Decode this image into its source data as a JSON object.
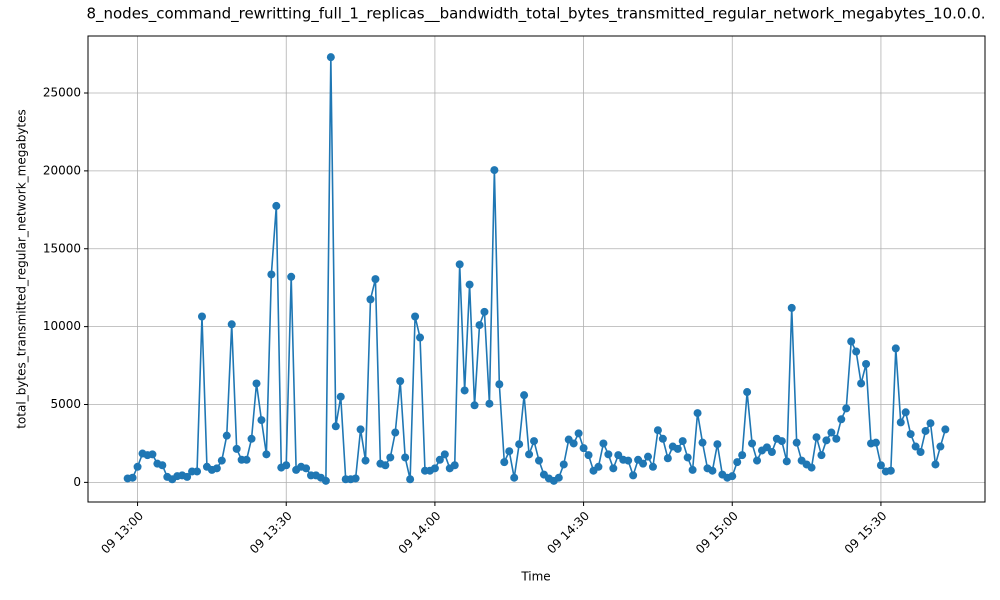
{
  "chart_data": {
    "type": "line",
    "title": "8_nodes_command_rewritting_full_1_replicas__bandwidth_total_bytes_transmitted_regular_network_megabytes_10.0.0.",
    "x_label": "Time",
    "y_label": "total_bytes_transmitted_regular_network_megabytes",
    "x": [
      "09 12:58",
      "09 12:59",
      "09 13:00",
      "09 13:01",
      "09 13:02",
      "09 13:03",
      "09 13:04",
      "09 13:05",
      "09 13:06",
      "09 13:07",
      "09 13:08",
      "09 13:09",
      "09 13:10",
      "09 13:11",
      "09 13:12",
      "09 13:13",
      "09 13:14",
      "09 13:15",
      "09 13:16",
      "09 13:17",
      "09 13:18",
      "09 13:19",
      "09 13:20",
      "09 13:21",
      "09 13:22",
      "09 13:23",
      "09 13:24",
      "09 13:25",
      "09 13:26",
      "09 13:27",
      "09 13:28",
      "09 13:29",
      "09 13:30",
      "09 13:31",
      "09 13:32",
      "09 13:33",
      "09 13:34",
      "09 13:35",
      "09 13:36",
      "09 13:37",
      "09 13:38",
      "09 13:39",
      "09 13:40",
      "09 13:41",
      "09 13:42",
      "09 13:43",
      "09 13:44",
      "09 13:45",
      "09 13:46",
      "09 13:47",
      "09 13:48",
      "09 13:49",
      "09 13:50",
      "09 13:51",
      "09 13:52",
      "09 13:53",
      "09 13:54",
      "09 13:55",
      "09 13:56",
      "09 13:57",
      "09 13:58",
      "09 13:59",
      "09 14:00",
      "09 14:01",
      "09 14:02",
      "09 14:03",
      "09 14:04",
      "09 14:05",
      "09 14:06",
      "09 14:07",
      "09 14:08",
      "09 14:09",
      "09 14:10",
      "09 14:11",
      "09 14:12",
      "09 14:13",
      "09 14:14",
      "09 14:15",
      "09 14:16",
      "09 14:17",
      "09 14:18",
      "09 14:19",
      "09 14:20",
      "09 14:21",
      "09 14:22",
      "09 14:23",
      "09 14:24",
      "09 14:25",
      "09 14:26",
      "09 14:27",
      "09 14:28",
      "09 14:29",
      "09 14:30",
      "09 14:31",
      "09 14:32",
      "09 14:33",
      "09 14:34",
      "09 14:35",
      "09 14:36",
      "09 14:37",
      "09 14:38",
      "09 14:39",
      "09 14:40",
      "09 14:41",
      "09 14:42",
      "09 14:43",
      "09 14:44",
      "09 14:45",
      "09 14:46",
      "09 14:47",
      "09 14:48",
      "09 14:49",
      "09 14:50",
      "09 14:51",
      "09 14:52",
      "09 14:53",
      "09 14:54",
      "09 14:55",
      "09 14:56",
      "09 14:57",
      "09 14:58",
      "09 14:59",
      "09 15:00",
      "09 15:01",
      "09 15:02",
      "09 15:03",
      "09 15:04",
      "09 15:05",
      "09 15:06",
      "09 15:07",
      "09 15:08",
      "09 15:09",
      "09 15:10",
      "09 15:11",
      "09 15:12",
      "09 15:13",
      "09 15:14",
      "09 15:15",
      "09 15:16",
      "09 15:17",
      "09 15:18",
      "09 15:19",
      "09 15:20",
      "09 15:21",
      "09 15:22",
      "09 15:23",
      "09 15:24",
      "09 15:25",
      "09 15:26",
      "09 15:27",
      "09 15:28",
      "09 15:29",
      "09 15:30",
      "09 15:31",
      "09 15:32",
      "09 15:33",
      "09 15:34",
      "09 15:35",
      "09 15:36",
      "09 15:37",
      "09 15:38",
      "09 15:39",
      "09 15:40",
      "09 15:41",
      "09 15:42",
      "09 15:43"
    ],
    "values": [
      250,
      300,
      1000,
      1850,
      1750,
      1800,
      1200,
      1100,
      350,
      200,
      400,
      450,
      350,
      700,
      700,
      10650,
      1000,
      800,
      900,
      1400,
      3000,
      10150,
      2150,
      1450,
      1450,
      2800,
      6350,
      4000,
      1800,
      13350,
      17750,
      950,
      1100,
      13200,
      800,
      1000,
      900,
      450,
      450,
      300,
      100,
      27300,
      3600,
      5500,
      200,
      200,
      250,
      3400,
      1400,
      11750,
      13050,
      1200,
      1100,
      1600,
      3200,
      6500,
      1600,
      200,
      10650,
      9300,
      750,
      750,
      900,
      1450,
      1800,
      900,
      1100,
      14000,
      5900,
      12700,
      4950,
      10100,
      10950,
      5050,
      20050,
      6300,
      1300,
      2000,
      300,
      2450,
      5600,
      1800,
      2650,
      1400,
      500,
      250,
      100,
      300,
      1150,
      2750,
      2500,
      3150,
      2200,
      1750,
      750,
      1000,
      2500,
      1800,
      900,
      1750,
      1450,
      1400,
      450,
      1450,
      1200,
      1650,
      1000,
      3350,
      2800,
      1550,
      2300,
      2150,
      2650,
      1600,
      800,
      4450,
      2550,
      900,
      750,
      2450,
      500,
      300,
      400,
      1300,
      1750,
      5800,
      2500,
      1400,
      2050,
      2250,
      1950,
      2800,
      2650,
      1350,
      11200,
      2550,
      1400,
      1150,
      950,
      2900,
      1750,
      2700,
      3200,
      2800,
      4050,
      4750,
      9050,
      8400,
      6350,
      7600,
      2500,
      2550,
      1100,
      700,
      750,
      8600,
      3850,
      4500,
      3100,
      2300,
      1950,
      3300,
      3800,
      1150,
      2300,
      3400
    ],
    "color": "#1f77b4",
    "xlim": [
      "09 12:50",
      "09 15:51"
    ],
    "xticks": [
      "09 13:00",
      "09 13:30",
      "09 14:00",
      "09 14:30",
      "09 15:00",
      "09 15:30"
    ],
    "ylim": [
      -1260,
      28660
    ],
    "yticks": [
      0,
      5000,
      10000,
      15000,
      20000,
      25000
    ],
    "grid": true
  }
}
